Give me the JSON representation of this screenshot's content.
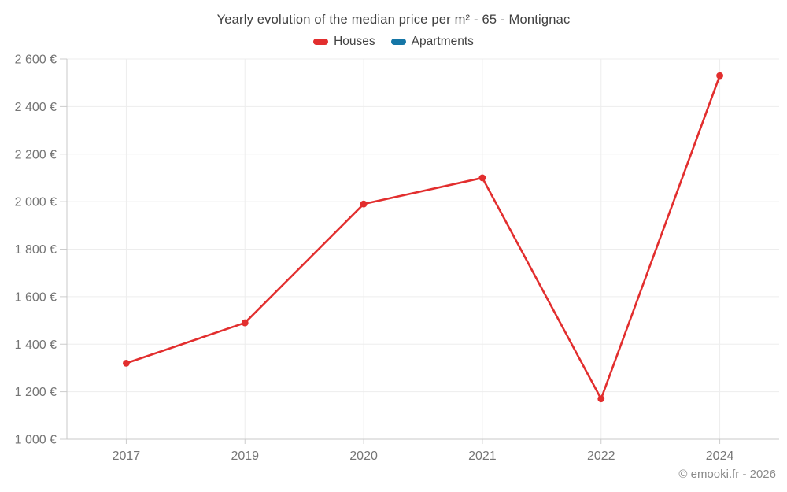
{
  "chart_data": {
    "type": "line",
    "title": "Yearly evolution of the median price per m² - 65 - Montignac",
    "categories": [
      "2017",
      "2019",
      "2020",
      "2021",
      "2022",
      "2024"
    ],
    "series": [
      {
        "name": "Houses",
        "color": "#e22e2e",
        "values": [
          1320,
          1490,
          1990,
          2100,
          1170,
          2530
        ]
      },
      {
        "name": "Apartments",
        "color": "#1576a6",
        "values": []
      }
    ],
    "ylim": [
      1000,
      2600
    ],
    "ytick_step": 200,
    "ytick_labels": [
      "1 000 €",
      "1 200 €",
      "1 400 €",
      "1 600 €",
      "1 800 €",
      "2 000 €",
      "2 200 €",
      "2 400 €",
      "2 600 €"
    ],
    "xlabel": "",
    "ylabel": "",
    "grid": true,
    "legend_position": "top"
  },
  "footer": {
    "copyright": "© emooki.fr - 2026"
  }
}
